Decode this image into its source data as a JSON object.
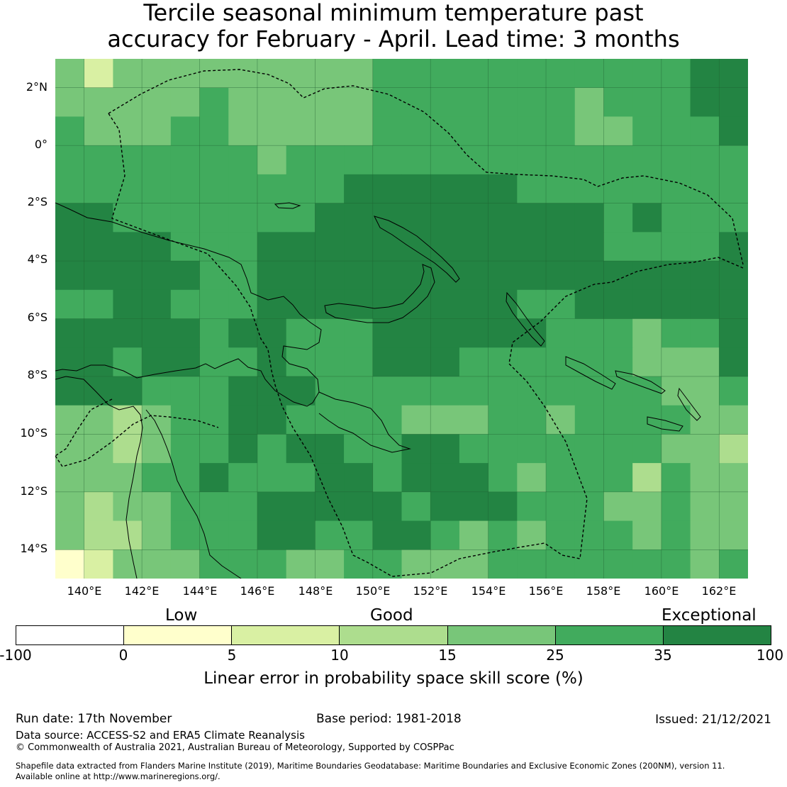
{
  "title": {
    "line1": "Tercile seasonal minimum temperature past",
    "line2": "accuracy for February - April. Lead time: 3 months"
  },
  "map": {
    "lat_labels": [
      "2°N",
      "0°",
      "2°S",
      "4°S",
      "6°S",
      "8°S",
      "10°S",
      "12°S",
      "14°S"
    ],
    "lon_labels": [
      "140°E",
      "142°E",
      "144°E",
      "146°E",
      "148°E",
      "150°E",
      "152°E",
      "154°E",
      "156°E",
      "158°E",
      "160°E",
      "162°E"
    ],
    "extent": {
      "lon_min": 139.0,
      "lon_max": 163.0,
      "lat_min": -15.0,
      "lat_max": 3.0
    },
    "grid": [
      "PPPPPPPPPPPPPPPPPPPPPPPPPPPPPPPPPPPPPPPPPPPPPPPPPPPPPPPPPPPPPPP",
      "PPPPPPPPPPPPPPPPPPPPPPPPPPPPPPPPPPPPPPPPPPPPPPPPPPPPPPPPPPPPPPP",
      "PPPPPPPPPPPPPPPPPPPPPPPPPPPPPPPPPPPPPPPPPPPPPPPPPPPPPPPPPPPPPPP",
      "PPPPPPPPPPPPPPPPPPPPPPPPPPPPPPPPPPPPPPPPPPPPPPPPPPPPPPPPPPPPPPP"
    ]
  },
  "colorbar": {
    "category_labels": {
      "low": "Low",
      "good": "Good",
      "exceptional": "Exceptional"
    },
    "ticks": [
      "-100",
      "0",
      "5",
      "10",
      "15",
      "25",
      "35",
      "100"
    ],
    "colors": [
      "#ffffff",
      "#ffffcc",
      "#d9f0a3",
      "#addd8e",
      "#78c679",
      "#41ab5d",
      "#238443"
    ],
    "title": "Linear error in probability space skill score (%)"
  },
  "footer": {
    "run_date": "Run date: 17th November",
    "base_period": "Base period: 1981-2018",
    "issued": "Issued: 21/12/2021",
    "data_source": "Data source: ACCESS-S2 and ERA5 Climate Reanalysis",
    "copyright": "© Commonwealth of Australia 2021, Australian Bureau of Meteorology, Supported by COSPPac",
    "shapefile_line1": "Shapefile data extracted from Flanders Marine Institute (2019), Maritime Boundaries Geodatabase: Maritime Boundaries and Exclusive Economic Zones (200NM), version 11.",
    "shapefile_line2": "Available online at http://www.marineregions.org/."
  }
}
